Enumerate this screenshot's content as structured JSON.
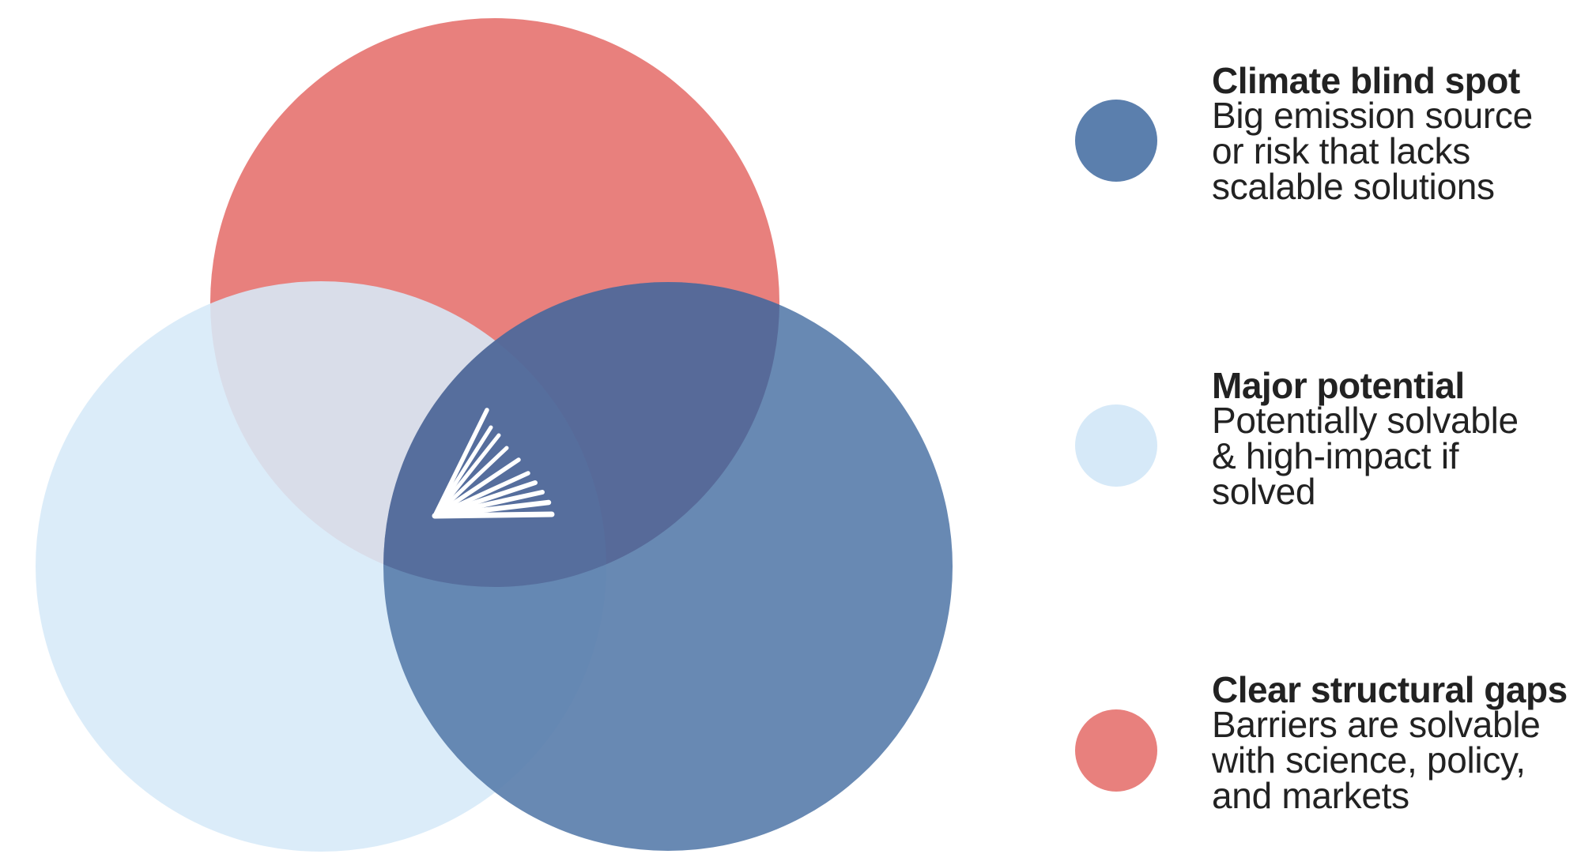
{
  "colors": {
    "blind_spot": "#5b7fad",
    "potential": "#d6e9f8",
    "gaps": "#e8807d",
    "text": "#222222",
    "logo": "#ffffff"
  },
  "logo": {
    "icon": "fan-burst-logo"
  },
  "legend": {
    "items": [
      {
        "title": "Climate blind spot",
        "lines": [
          "Big emission source",
          "or risk that lacks",
          "scalable solutions"
        ],
        "color": "#5b7fad"
      },
      {
        "title": "Major potential",
        "lines": [
          "Potentially solvable",
          "& high-impact if",
          "solved"
        ],
        "color": "#d6e9f8"
      },
      {
        "title": "Clear structural gaps",
        "lines": [
          "Barriers are solvable",
          "with science, policy,",
          "and markets"
        ],
        "color": "#e8807d"
      }
    ]
  }
}
